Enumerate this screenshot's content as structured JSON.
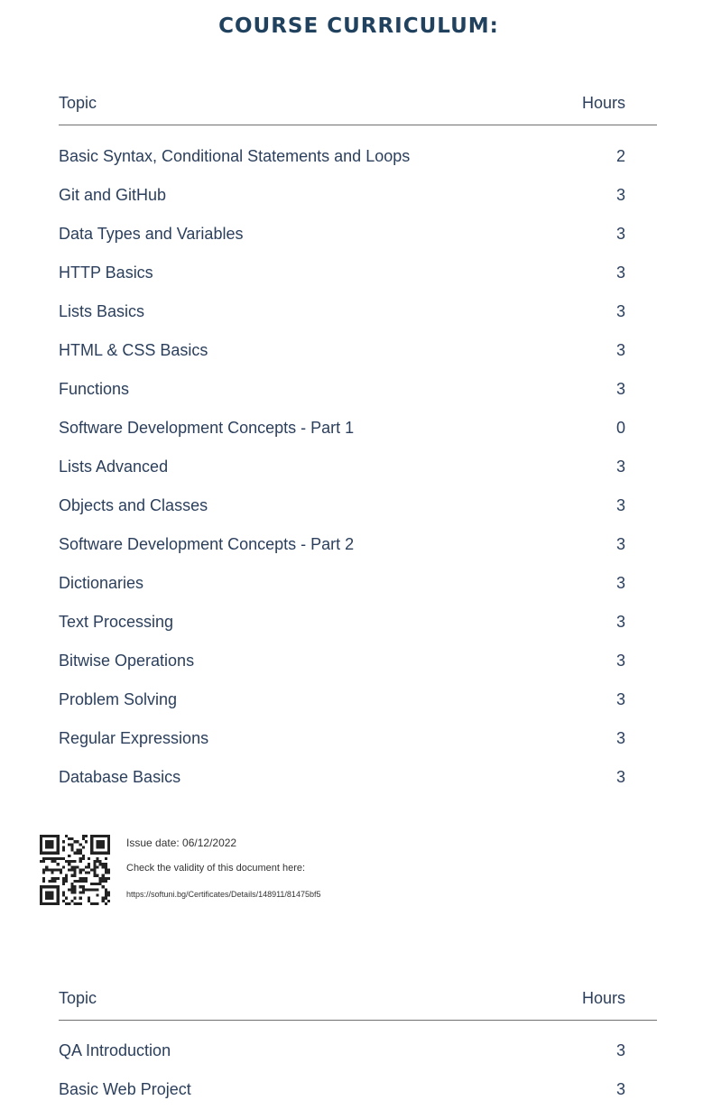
{
  "title": "COURSE CURRICULUM:",
  "table1": {
    "header": {
      "topic": "Topic",
      "hours": "Hours"
    },
    "rows": [
      {
        "topic": "Basic Syntax, Conditional Statements and Loops",
        "hours": "2"
      },
      {
        "topic": "Git and GitHub",
        "hours": "3"
      },
      {
        "topic": "Data Types and Variables",
        "hours": "3"
      },
      {
        "topic": "HTTP Basics",
        "hours": "3"
      },
      {
        "topic": "Lists Basics",
        "hours": "3"
      },
      {
        "topic": "HTML & CSS Basics",
        "hours": "3"
      },
      {
        "topic": "Functions",
        "hours": "3"
      },
      {
        "topic": "Software Development Concepts - Part 1",
        "hours": "0"
      },
      {
        "topic": "Lists Advanced",
        "hours": "3"
      },
      {
        "topic": "Objects and Classes",
        "hours": "3"
      },
      {
        "topic": "Software Development Concepts - Part 2",
        "hours": "3"
      },
      {
        "topic": "Dictionaries",
        "hours": "3"
      },
      {
        "topic": "Text Processing",
        "hours": "3"
      },
      {
        "topic": "Bitwise Operations",
        "hours": "3"
      },
      {
        "topic": "Problem Solving",
        "hours": "3"
      },
      {
        "topic": "Regular Expressions",
        "hours": "3"
      },
      {
        "topic": "Database Basics",
        "hours": "3"
      }
    ]
  },
  "footer": {
    "issue_date": "Issue date: 06/12/2022",
    "check_text": "Check the validity of this document here:",
    "url": "https://softuni.bg/Certificates/Details/148911/81475bf5",
    "qr_icon": "qr-code-icon"
  },
  "table2": {
    "header": {
      "topic": "Topic",
      "hours": "Hours"
    },
    "rows": [
      {
        "topic": "QA Introduction",
        "hours": "3"
      },
      {
        "topic": "Basic Web Project",
        "hours": "3"
      }
    ]
  }
}
